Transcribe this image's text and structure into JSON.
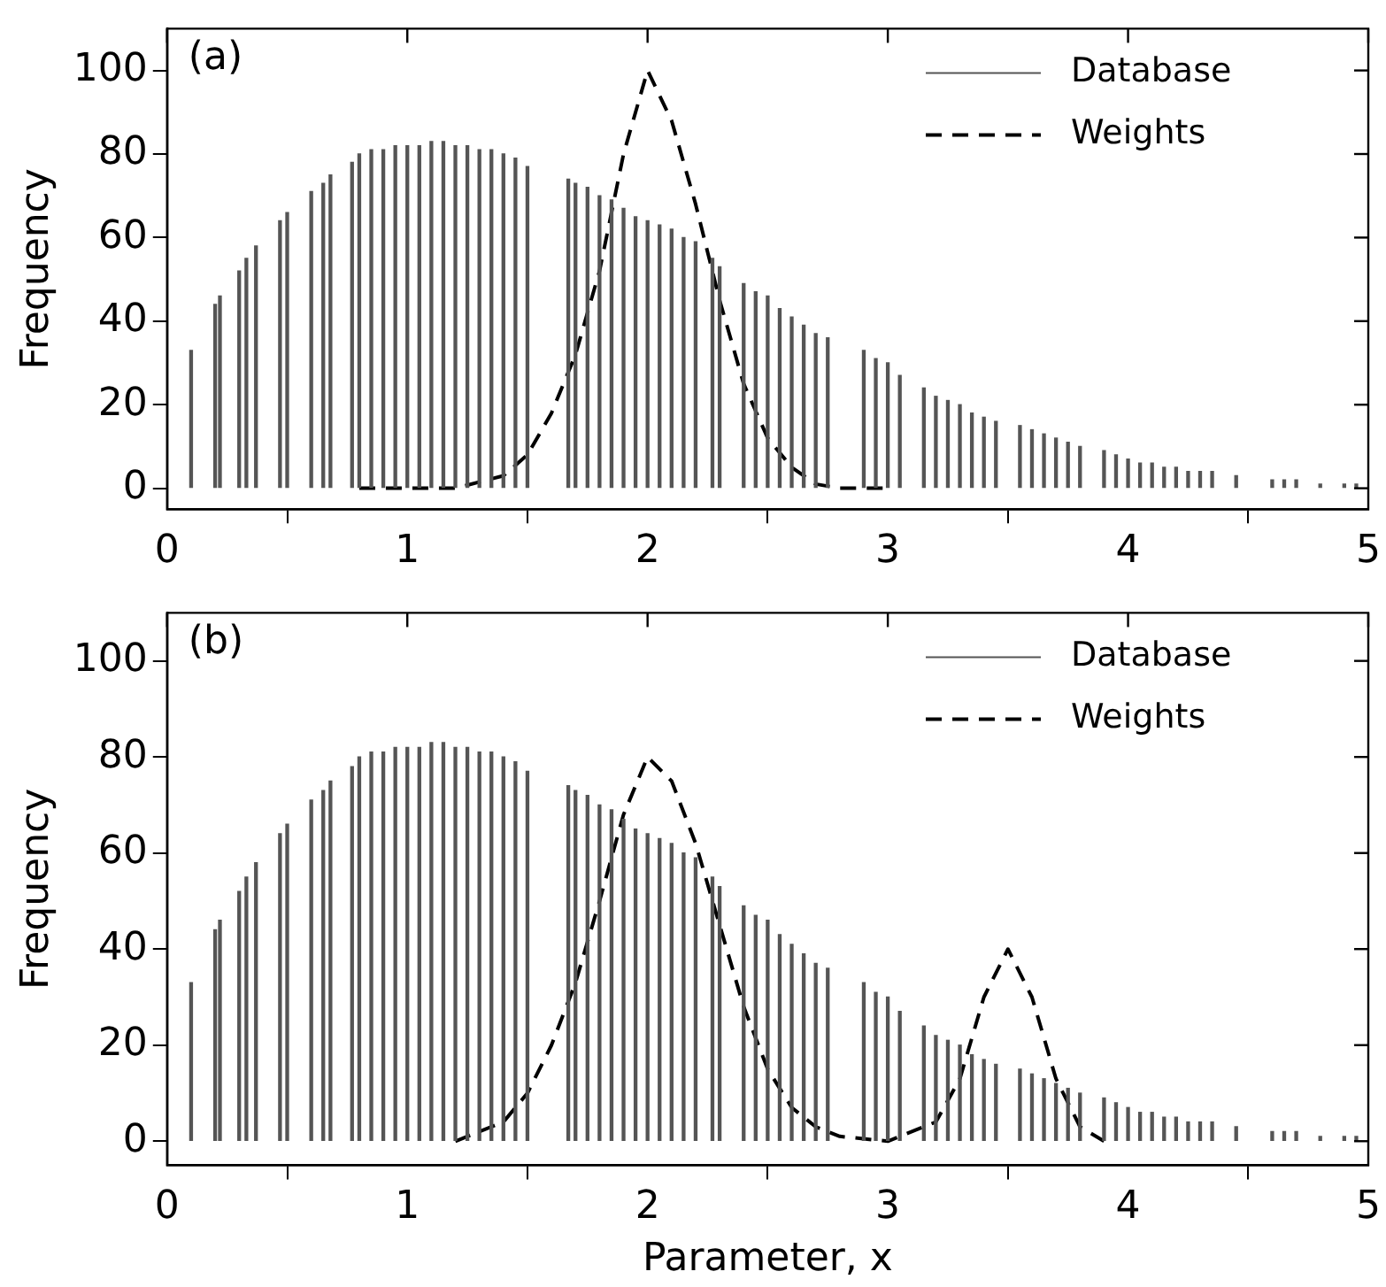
{
  "chart_data": [
    {
      "type": "bar",
      "ylabel": "Frequency",
      "annotations": [
        "(a)"
      ],
      "legend": "top right",
      "grid": false,
      "xlim": [
        0,
        5
      ],
      "xticks": [
        0,
        1,
        2,
        3,
        4,
        5
      ],
      "ylim": [
        -5,
        110
      ],
      "yticks": [
        0,
        20,
        40,
        60,
        80,
        100
      ],
      "series": [
        {
          "name": "Database",
          "color": "#555555",
          "x": [
            0.1,
            0.2,
            0.22,
            0.3,
            0.33,
            0.37,
            0.47,
            0.5,
            0.6,
            0.65,
            0.68,
            0.77,
            0.8,
            0.85,
            0.9,
            0.95,
            1.0,
            1.05,
            1.1,
            1.15,
            1.2,
            1.25,
            1.3,
            1.35,
            1.4,
            1.45,
            1.5,
            1.67,
            1.7,
            1.75,
            1.8,
            1.85,
            1.9,
            1.95,
            2.0,
            2.05,
            2.1,
            2.15,
            2.2,
            2.27,
            2.3,
            2.4,
            2.45,
            2.5,
            2.55,
            2.6,
            2.65,
            2.7,
            2.75,
            2.9,
            2.95,
            3.0,
            3.05,
            3.15,
            3.2,
            3.25,
            3.3,
            3.35,
            3.4,
            3.45,
            3.55,
            3.6,
            3.65,
            3.7,
            3.75,
            3.8,
            3.9,
            3.95,
            4.0,
            4.05,
            4.1,
            4.15,
            4.2,
            4.25,
            4.3,
            4.35,
            4.45,
            4.6,
            4.65,
            4.7,
            4.8,
            4.9,
            4.95
          ],
          "values": [
            33,
            44,
            46,
            52,
            55,
            58,
            64,
            66,
            71,
            73,
            75,
            78,
            80,
            81,
            81,
            82,
            82,
            82,
            83,
            83,
            82,
            82,
            81,
            81,
            80,
            79,
            77,
            74,
            73,
            72,
            70,
            69,
            67,
            65,
            64,
            63,
            62,
            60,
            59,
            55,
            53,
            49,
            47,
            46,
            43,
            41,
            39,
            37,
            36,
            33,
            31,
            30,
            27,
            24,
            22,
            21,
            20,
            18,
            17,
            16,
            15,
            14,
            13,
            12,
            11,
            10,
            9,
            8,
            7,
            6,
            6,
            5,
            5,
            4,
            4,
            4,
            3,
            2,
            2,
            2,
            1,
            1,
            1
          ]
        },
        {
          "name": "Weights",
          "type": "line",
          "color": "#000000",
          "line_style": "dashed",
          "marker": "none",
          "x": [
            0.8,
            1.2,
            1.4,
            1.5,
            1.6,
            1.7,
            1.8,
            1.9,
            2.0,
            2.1,
            2.2,
            2.3,
            2.4,
            2.5,
            2.6,
            2.7,
            2.8,
            3.0
          ],
          "values": [
            0,
            0,
            3,
            8,
            18,
            32,
            52,
            80,
            100,
            88,
            68,
            45,
            25,
            12,
            5,
            1,
            0,
            0
          ]
        }
      ]
    },
    {
      "type": "bar",
      "xlabel": "Parameter, x",
      "ylabel": "Frequency",
      "annotations": [
        "(b)"
      ],
      "legend": "top right",
      "grid": false,
      "xlim": [
        0,
        5
      ],
      "xticks": [
        0,
        1,
        2,
        3,
        4,
        5
      ],
      "ylim": [
        -5,
        110
      ],
      "yticks": [
        0,
        20,
        40,
        60,
        80,
        100
      ],
      "series": [
        {
          "name": "Database",
          "color": "#555555",
          "x": [
            0.1,
            0.2,
            0.22,
            0.3,
            0.33,
            0.37,
            0.47,
            0.5,
            0.6,
            0.65,
            0.68,
            0.77,
            0.8,
            0.85,
            0.9,
            0.95,
            1.0,
            1.05,
            1.1,
            1.15,
            1.2,
            1.25,
            1.3,
            1.35,
            1.4,
            1.45,
            1.5,
            1.67,
            1.7,
            1.75,
            1.8,
            1.85,
            1.9,
            1.95,
            2.0,
            2.05,
            2.1,
            2.15,
            2.2,
            2.27,
            2.3,
            2.4,
            2.45,
            2.5,
            2.55,
            2.6,
            2.65,
            2.7,
            2.75,
            2.9,
            2.95,
            3.0,
            3.05,
            3.15,
            3.2,
            3.25,
            3.3,
            3.35,
            3.4,
            3.45,
            3.55,
            3.6,
            3.65,
            3.7,
            3.75,
            3.8,
            3.9,
            3.95,
            4.0,
            4.05,
            4.1,
            4.15,
            4.2,
            4.25,
            4.3,
            4.35,
            4.45,
            4.6,
            4.65,
            4.7,
            4.8,
            4.9,
            4.95
          ],
          "values": [
            33,
            44,
            46,
            52,
            55,
            58,
            64,
            66,
            71,
            73,
            75,
            78,
            80,
            81,
            81,
            82,
            82,
            82,
            83,
            83,
            82,
            82,
            81,
            81,
            80,
            79,
            77,
            74,
            73,
            72,
            70,
            69,
            67,
            65,
            64,
            63,
            62,
            60,
            59,
            55,
            53,
            49,
            47,
            46,
            43,
            41,
            39,
            37,
            36,
            33,
            31,
            30,
            27,
            24,
            22,
            21,
            20,
            18,
            17,
            16,
            15,
            14,
            13,
            12,
            11,
            10,
            9,
            8,
            7,
            6,
            6,
            5,
            5,
            4,
            4,
            4,
            3,
            2,
            2,
            2,
            1,
            1,
            1
          ]
        },
        {
          "name": "Weights",
          "type": "line",
          "color": "#000000",
          "line_style": "dashed",
          "marker": "none",
          "x": [
            1.2,
            1.4,
            1.5,
            1.6,
            1.7,
            1.8,
            1.9,
            2.0,
            2.1,
            2.2,
            2.3,
            2.4,
            2.5,
            2.6,
            2.7,
            2.8,
            3.0,
            3.2,
            3.3,
            3.4,
            3.5,
            3.6,
            3.7,
            3.8,
            3.9
          ],
          "values": [
            0,
            4,
            10,
            20,
            33,
            50,
            68,
            80,
            75,
            62,
            45,
            28,
            15,
            7,
            3,
            1,
            0,
            4,
            13,
            30,
            40,
            30,
            13,
            3,
            0
          ]
        }
      ]
    }
  ]
}
